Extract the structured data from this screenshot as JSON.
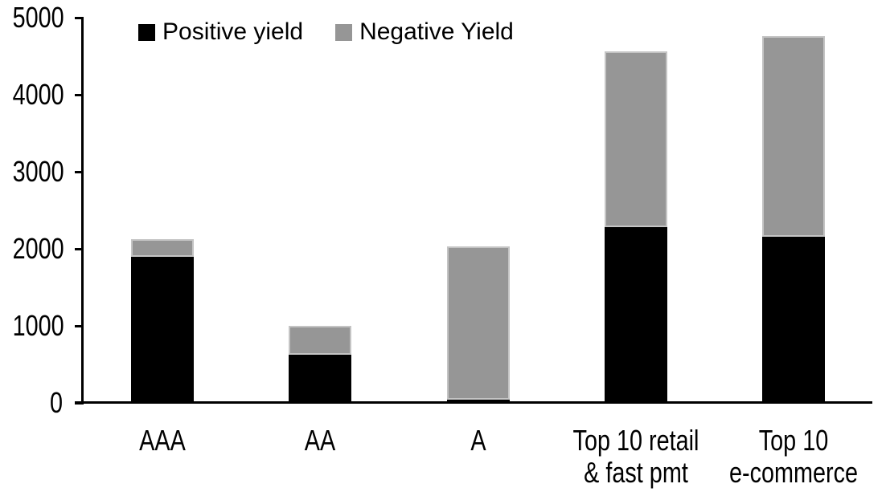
{
  "chart_data": {
    "type": "bar",
    "stacked": true,
    "categories": [
      "AAA",
      "AA",
      "A",
      "Top 10 retail & fast pmt",
      "Top 10 e-commerce"
    ],
    "category_label_lines": [
      [
        "AAA"
      ],
      [
        "AA"
      ],
      [
        "A"
      ],
      [
        "Top 10 retail",
        "& fast pmt"
      ],
      [
        "Top 10",
        "e-commerce"
      ]
    ],
    "series": [
      {
        "name": "Positive yield",
        "color": "#000000",
        "values": [
          1900,
          620,
          40,
          2280,
          2160
        ]
      },
      {
        "name": "Negative Yield",
        "color": "#969696",
        "values": [
          230,
          380,
          1990,
          2280,
          2600
        ]
      }
    ],
    "ylim": [
      0,
      5000
    ],
    "yticks": [
      0,
      1000,
      2000,
      3000,
      4000,
      5000
    ],
    "grid": false,
    "legend_position": "top",
    "axis_color": "#000000",
    "negative_segment_outline_color": "#c4c4c4"
  },
  "legend": {
    "items": [
      {
        "label": "Positive yield",
        "color": "#000000"
      },
      {
        "label": "Negative Yield",
        "color": "#969696"
      }
    ]
  }
}
